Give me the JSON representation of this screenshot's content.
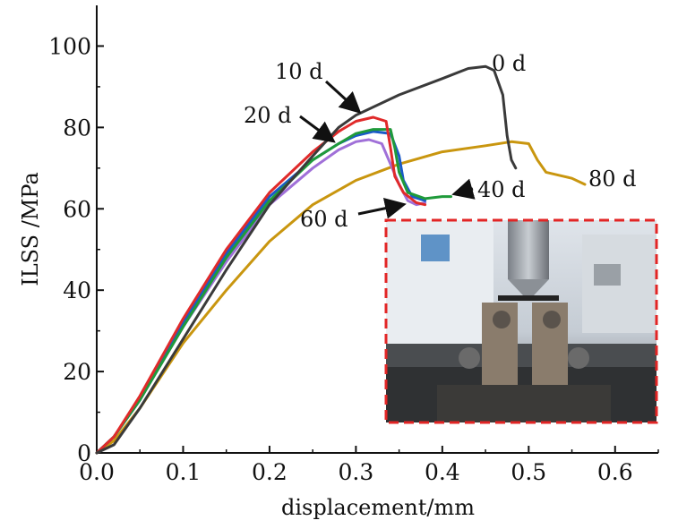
{
  "chart_data": {
    "type": "line",
    "xlabel": "displacement/mm",
    "ylabel": "ILSS /MPa",
    "xlim": [
      0,
      0.65
    ],
    "ylim": [
      0,
      110
    ],
    "xticks": [
      "0.0",
      "0.1",
      "0.2",
      "0.3",
      "0.4",
      "0.5",
      "0.6"
    ],
    "yticks": [
      "0",
      "20",
      "40",
      "60",
      "80",
      "100"
    ],
    "grid": false,
    "series": [
      {
        "name": "0 d",
        "color": "#3a3a3a",
        "points": [
          [
            0.0,
            0
          ],
          [
            0.02,
            2
          ],
          [
            0.05,
            11
          ],
          [
            0.1,
            28
          ],
          [
            0.15,
            45
          ],
          [
            0.2,
            61
          ],
          [
            0.25,
            73
          ],
          [
            0.28,
            80
          ],
          [
            0.3,
            83
          ],
          [
            0.35,
            88
          ],
          [
            0.4,
            92
          ],
          [
            0.43,
            94.5
          ],
          [
            0.45,
            95
          ],
          [
            0.46,
            94
          ],
          [
            0.47,
            88
          ],
          [
            0.475,
            78
          ],
          [
            0.48,
            72
          ],
          [
            0.485,
            70
          ]
        ]
      },
      {
        "name": "10 d",
        "color": "#e02a2a",
        "points": [
          [
            0.0,
            0
          ],
          [
            0.02,
            4
          ],
          [
            0.05,
            14
          ],
          [
            0.1,
            33
          ],
          [
            0.15,
            50
          ],
          [
            0.2,
            64
          ],
          [
            0.25,
            74
          ],
          [
            0.28,
            79
          ],
          [
            0.3,
            81.5
          ],
          [
            0.32,
            82.5
          ],
          [
            0.335,
            81.5
          ],
          [
            0.34,
            75
          ],
          [
            0.345,
            68
          ],
          [
            0.355,
            64
          ],
          [
            0.37,
            61.5
          ],
          [
            0.38,
            61
          ]
        ]
      },
      {
        "name": "20 d",
        "color": "#1a5ac8",
        "points": [
          [
            0.0,
            0
          ],
          [
            0.02,
            4
          ],
          [
            0.05,
            13
          ],
          [
            0.1,
            32
          ],
          [
            0.15,
            49
          ],
          [
            0.2,
            63
          ],
          [
            0.25,
            72
          ],
          [
            0.28,
            76
          ],
          [
            0.3,
            78
          ],
          [
            0.32,
            79
          ],
          [
            0.34,
            78.5
          ],
          [
            0.35,
            73
          ],
          [
            0.355,
            67
          ],
          [
            0.365,
            63
          ],
          [
            0.38,
            62
          ]
        ]
      },
      {
        "name": "40 d",
        "color": "#1f9a3a",
        "points": [
          [
            0.0,
            0
          ],
          [
            0.02,
            4
          ],
          [
            0.05,
            13
          ],
          [
            0.1,
            31
          ],
          [
            0.15,
            48
          ],
          [
            0.2,
            62
          ],
          [
            0.25,
            72
          ],
          [
            0.28,
            76
          ],
          [
            0.3,
            78.5
          ],
          [
            0.32,
            79.5
          ],
          [
            0.34,
            79.5
          ],
          [
            0.345,
            75
          ],
          [
            0.35,
            69
          ],
          [
            0.36,
            64
          ],
          [
            0.38,
            62.5
          ],
          [
            0.4,
            63
          ],
          [
            0.41,
            63
          ]
        ]
      },
      {
        "name": "60 d",
        "color": "#a070d8",
        "points": [
          [
            0.0,
            0
          ],
          [
            0.02,
            4
          ],
          [
            0.05,
            13
          ],
          [
            0.1,
            31
          ],
          [
            0.15,
            47
          ],
          [
            0.2,
            61
          ],
          [
            0.25,
            70
          ],
          [
            0.28,
            74.5
          ],
          [
            0.3,
            76.5
          ],
          [
            0.315,
            77
          ],
          [
            0.33,
            76
          ],
          [
            0.34,
            71
          ],
          [
            0.35,
            66
          ],
          [
            0.36,
            62
          ],
          [
            0.37,
            61
          ],
          [
            0.38,
            61.5
          ]
        ]
      },
      {
        "name": "80 d",
        "color": "#c9960f",
        "points": [
          [
            0.0,
            0
          ],
          [
            0.02,
            3
          ],
          [
            0.05,
            11
          ],
          [
            0.1,
            27
          ],
          [
            0.15,
            40
          ],
          [
            0.2,
            52
          ],
          [
            0.25,
            61
          ],
          [
            0.3,
            67
          ],
          [
            0.35,
            71
          ],
          [
            0.4,
            74
          ],
          [
            0.45,
            75.5
          ],
          [
            0.48,
            76.5
          ],
          [
            0.5,
            76
          ],
          [
            0.51,
            72
          ],
          [
            0.52,
            69
          ],
          [
            0.54,
            68
          ],
          [
            0.55,
            67.5
          ],
          [
            0.565,
            66
          ]
        ]
      }
    ]
  }
}
